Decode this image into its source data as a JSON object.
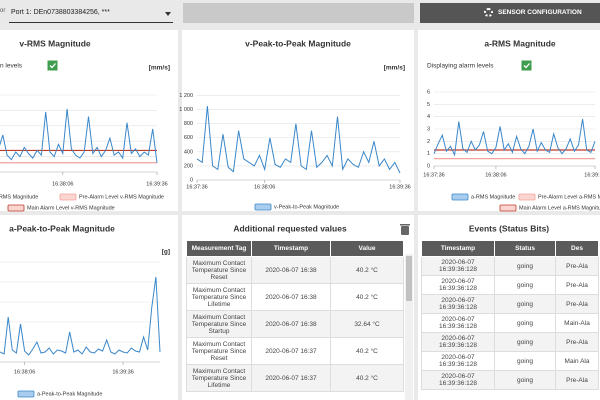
{
  "header": {
    "port_label": "or",
    "port_select": "Port 1: DEn0738803384256, ***",
    "sensor_button": "SENSOR CONFIGURATION"
  },
  "chart_data": [
    {
      "type": "line",
      "title": "v-RMS Magnitude",
      "alarm_text": "n levels",
      "alarm_checked": true,
      "unit": "[mm/s]",
      "categories": [
        null,
        null,
        null,
        null,
        null,
        null,
        null,
        null,
        null,
        null,
        null,
        null,
        null,
        null,
        null,
        null,
        null,
        "16:38:06",
        null,
        null,
        null,
        null,
        null,
        null,
        null,
        null,
        null,
        null,
        null,
        null,
        null,
        null,
        null,
        null,
        null,
        null,
        null,
        null,
        null,
        "16:39:36"
      ],
      "series": [
        {
          "name": "-RMS Magnitude",
          "color": "#3a87c9",
          "values": [
            1.2,
            0.9,
            1.5,
            2.4,
            1.1,
            0.8,
            1.3,
            1.0,
            1.6,
            1.2,
            0.9,
            1.4,
            1.1,
            3.9,
            1.3,
            1.0,
            1.8,
            1.2,
            4.1,
            1.5,
            1.1,
            0.9,
            1.3,
            3.6,
            1.2,
            1.6,
            1.0,
            1.4,
            2.2,
            1.1,
            1.3,
            0.9,
            3.2,
            1.2,
            1.5,
            1.0,
            1.3,
            1.1,
            2.8,
            0.6
          ]
        }
      ],
      "thresholds": [
        {
          "name": "Pre-Alarm Level v-RMS Magnitude",
          "color": "#f2a49c",
          "value": 0.6
        },
        {
          "name": "Main Alarm Level v-RMS Magnitude",
          "color": "#c0392b",
          "value": 1.4
        }
      ],
      "ylim": [
        0,
        5
      ],
      "grid": true
    },
    {
      "type": "line",
      "title": "v-Peak-to-Peak Magnitude",
      "unit": "[mm/s]",
      "categories": [
        "16:37:36",
        null,
        null,
        null,
        null,
        null,
        null,
        null,
        null,
        null,
        null,
        null,
        null,
        "16:38:06",
        null,
        null,
        null,
        null,
        null,
        null,
        null,
        null,
        null,
        null,
        null,
        null,
        null,
        null,
        null,
        null,
        null,
        null,
        null,
        null,
        null,
        null,
        null,
        null,
        null,
        "16:39:36"
      ],
      "series": [
        {
          "name": "v-Peak-to-Peak Magnitude",
          "color": "#3a87c9",
          "values": [
            300,
            250,
            1050,
            200,
            150,
            650,
            180,
            120,
            700,
            300,
            250,
            200,
            350,
            150,
            600,
            220,
            180,
            300,
            250,
            800,
            200,
            150,
            700,
            180,
            250,
            350,
            200,
            900,
            150,
            300,
            220,
            180,
            400,
            250,
            550,
            200,
            300,
            150,
            250,
            100
          ]
        }
      ],
      "ylim": [
        0,
        1250
      ],
      "yticks": [
        0,
        200,
        400,
        600,
        800,
        {
          "value": 1000,
          "label": "1 000"
        },
        {
          "value": 1200,
          "label": "1 200"
        }
      ],
      "grid": true
    },
    {
      "type": "line",
      "title": "a-RMS Magnitude",
      "alarm_text": "Displaying alarm levels",
      "alarm_checked": true,
      "categories": [
        "16:37:36",
        null,
        null,
        null,
        null,
        null,
        null,
        null,
        null,
        null,
        null,
        null,
        null,
        null,
        null,
        "16:38:06",
        null,
        null,
        null,
        null,
        null,
        null,
        null,
        null,
        null,
        null,
        null,
        null,
        null,
        null,
        null,
        null,
        null,
        null,
        null,
        null,
        null,
        null,
        null,
        "16:39:36"
      ],
      "series": [
        {
          "name": "a-RMS Magnitude",
          "color": "#3a87c9",
          "values": [
            1.0,
            1.8,
            2.5,
            1.2,
            1.6,
            0.9,
            3.6,
            1.4,
            1.1,
            2.0,
            1.3,
            1.7,
            2.8,
            1.2,
            1.0,
            1.5,
            3.2,
            1.3,
            1.8,
            1.1,
            2.4,
            1.4,
            1.0,
            1.6,
            3.0,
            1.2,
            1.9,
            1.3,
            1.1,
            2.6,
            1.5,
            1.0,
            1.4,
            2.2,
            1.2,
            1.7,
            3.8,
            1.3,
            1.1,
            2.0
          ]
        }
      ],
      "thresholds": [
        {
          "name": "Pre-Alarm Level a-RMS Magnitude",
          "color": "#f2a49c",
          "value": 0.6
        },
        {
          "name": "Main Alarm Level a-RMS Magnitude",
          "color": "#c0392b",
          "value": 1.3
        }
      ],
      "ylim": [
        0,
        6
      ],
      "yticks": [
        0,
        1,
        2,
        3,
        4,
        5,
        6
      ],
      "grid": true
    },
    {
      "type": "line",
      "title": "a-Peak-to-Peak Magnitude",
      "unit": "[g]",
      "categories": [
        null,
        null,
        null,
        null,
        null,
        null,
        "16:38:06",
        null,
        null,
        null,
        null,
        null,
        null,
        null,
        null,
        null,
        null,
        null,
        null,
        null,
        null,
        null,
        null,
        null,
        null,
        null,
        null,
        null,
        null,
        null,
        "16:39:36",
        null,
        null,
        null,
        null,
        null,
        null,
        null,
        null,
        null
      ],
      "series": [
        {
          "name": "a-Peak-to-Peak Magnitude",
          "color": "#3a87c9",
          "values": [
            1.0,
            0.8,
            4.5,
            1.2,
            0.9,
            3.8,
            1.1,
            0.7,
            1.3,
            2.0,
            0.9,
            1.0,
            1.4,
            0.8,
            1.2,
            1.1,
            0.9,
            3.0,
            1.0,
            1.2,
            0.8,
            1.5,
            1.0,
            0.9,
            1.3,
            1.1,
            2.2,
            1.0,
            0.8,
            1.2,
            1.0,
            0.9,
            1.4,
            1.1,
            1.0,
            2.5,
            1.2,
            5.5,
            8.5,
            1.0
          ]
        }
      ],
      "ylim": [
        0,
        10
      ],
      "grid": true
    }
  ],
  "requested": {
    "title": "Additional requested values",
    "headers": [
      "Measurement Tag",
      "Timestamp",
      "Value"
    ],
    "rows": [
      [
        "Maximum Contact Temperature Since Reset",
        "2020-06-07 16:38",
        "40.2 °C"
      ],
      [
        "Maximum Contact Temperature Since Lifetime",
        "2020-06-07 16:38",
        "40.2 °C"
      ],
      [
        "Maximum Contact Temperature Since Startup",
        "2020-06-07 16:38",
        "32.64 °C"
      ],
      [
        "Maximum Contact Temperature Since Reset",
        "2020-06-07 16:37",
        "40.2 °C"
      ],
      [
        "Maximum Contact Temperature Since Lifetime",
        "2020-06-07 16:37",
        "40.2 °C"
      ]
    ]
  },
  "events": {
    "title": "Events (Status Bits)",
    "headers": [
      "Timestamp",
      "Status",
      "Des"
    ],
    "rows": [
      [
        "2020-06-07 16:39:36:128",
        "going",
        "Pre-Ala"
      ],
      [
        "2020-06-07 16:39:36:128",
        "going",
        "Pre-Ala"
      ],
      [
        "2020-06-07 16:39:36:128",
        "going",
        "Pre-Ala"
      ],
      [
        "2020-06-07 16:39:36:128",
        "going",
        "Main-Ala"
      ],
      [
        "2020-06-07 16:39:36:128",
        "going",
        "Pre-Ala"
      ],
      [
        "2020-06-07 16:39:36:128",
        "going",
        "Main Ala"
      ],
      [
        "2020-06-07 16:39:36:128",
        "going",
        "Pre-Ala"
      ]
    ]
  }
}
